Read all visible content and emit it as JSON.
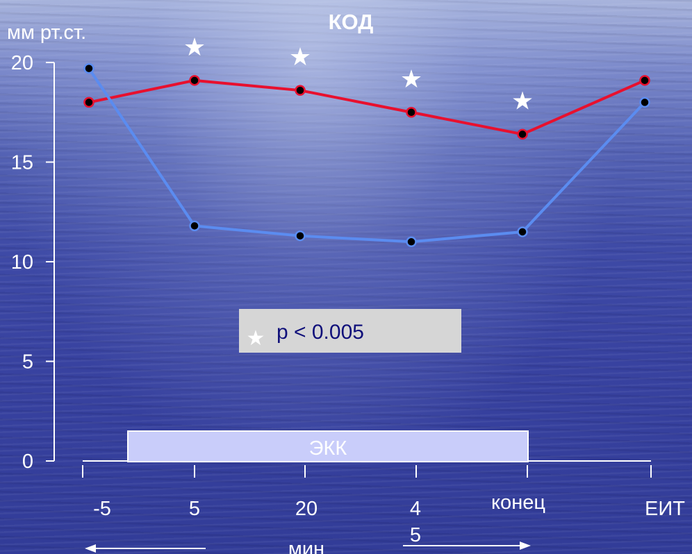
{
  "chart_data": {
    "type": "line",
    "title": "КОД",
    "ylabel": "мм рт.ст.",
    "xlabel": "мин",
    "ylim": [
      0,
      20
    ],
    "yticks": [
      "0",
      "5",
      "10",
      "15",
      "20"
    ],
    "categories": [
      "-5",
      "5",
      "20",
      "4",
      "конец",
      "ЕИТ"
    ],
    "x_extra_label": "5",
    "series": [
      {
        "color": "#e8102e",
        "values": [
          18.0,
          19.1,
          18.6,
          17.5,
          16.4,
          19.1
        ]
      },
      {
        "color": "#5b8cf0",
        "values": [
          19.7,
          11.8,
          11.3,
          11.0,
          11.5,
          18.0
        ]
      }
    ],
    "significance_markers": {
      "symbol": "★",
      "categories": [
        "5",
        "20",
        "4",
        "конец"
      ]
    },
    "legend": {
      "symbol": "★",
      "text": "p < 0.005"
    },
    "bar_annotation": {
      "label": "ЭКК",
      "color": "#c9cdfa"
    }
  }
}
